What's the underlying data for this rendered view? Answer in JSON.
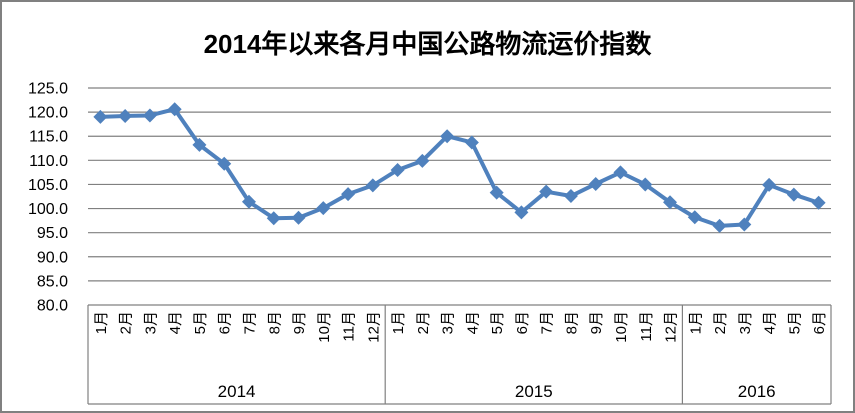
{
  "window": {
    "background_color": "#ffffff",
    "border_color": "#808080"
  },
  "chart_data": {
    "type": "line",
    "title": "2014年以来各月中国公路物流运价指数",
    "legend_position": "none",
    "grid": true,
    "line_color": "#4f81bd",
    "marker": "diamond",
    "gridline_color": "#808080",
    "axis_color": "#808080",
    "text_color": "#000000",
    "ylim": [
      80,
      125
    ],
    "ytick_labels": [
      "125.0",
      "120.0",
      "115.0",
      "110.0",
      "105.0",
      "100.0",
      "95.0",
      "90.0",
      "85.0",
      "80.0"
    ],
    "x_groups": [
      {
        "year": "2014",
        "months": [
          "1月",
          "2月",
          "3月",
          "4月",
          "5月",
          "6月",
          "7月",
          "8月",
          "9月",
          "10月",
          "11月",
          "12月"
        ]
      },
      {
        "year": "2015",
        "months": [
          "1月",
          "2月",
          "3月",
          "4月",
          "5月",
          "6月",
          "7月",
          "8月",
          "9月",
          "10月",
          "11月",
          "12月"
        ]
      },
      {
        "year": "2016",
        "months": [
          "1月",
          "2月",
          "3月",
          "4月",
          "5月",
          "6月"
        ]
      }
    ],
    "values": [
      119.0,
      119.2,
      119.3,
      120.6,
      113.2,
      109.3,
      101.4,
      98.0,
      98.1,
      100.1,
      103.0,
      104.8,
      108.0,
      109.9,
      115.0,
      113.7,
      103.3,
      99.2,
      103.5,
      102.6,
      105.1,
      107.5,
      105.0,
      101.3,
      98.2,
      96.4,
      96.7,
      104.9,
      102.9,
      101.2
    ]
  }
}
